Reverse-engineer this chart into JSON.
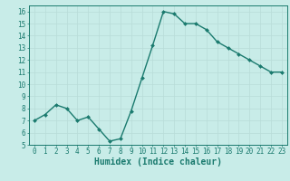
{
  "x": [
    0,
    1,
    2,
    3,
    4,
    5,
    6,
    7,
    8,
    9,
    10,
    11,
    12,
    13,
    14,
    15,
    16,
    17,
    18,
    19,
    20,
    21,
    22,
    23
  ],
  "y": [
    7.0,
    7.5,
    8.3,
    8.0,
    7.0,
    7.3,
    6.3,
    5.3,
    5.5,
    7.8,
    10.5,
    13.2,
    16.0,
    15.8,
    15.0,
    15.0,
    14.5,
    13.5,
    13.0,
    12.5,
    12.0,
    11.5,
    11.0,
    11.0
  ],
  "line_color": "#1a7a6e",
  "marker": "D",
  "marker_size": 2,
  "bg_color": "#c8ece8",
  "grid_color": "#b8dcd8",
  "xlabel": "Humidex (Indice chaleur)",
  "ylim": [
    5,
    16.5
  ],
  "xlim": [
    -0.5,
    23.5
  ],
  "yticks": [
    5,
    6,
    7,
    8,
    9,
    10,
    11,
    12,
    13,
    14,
    15,
    16
  ],
  "xticks": [
    0,
    1,
    2,
    3,
    4,
    5,
    6,
    7,
    8,
    9,
    10,
    11,
    12,
    13,
    14,
    15,
    16,
    17,
    18,
    19,
    20,
    21,
    22,
    23
  ],
  "tick_color": "#1a7a6e",
  "tick_fontsize": 5.5,
  "xlabel_fontsize": 7.0,
  "linewidth": 1.0
}
